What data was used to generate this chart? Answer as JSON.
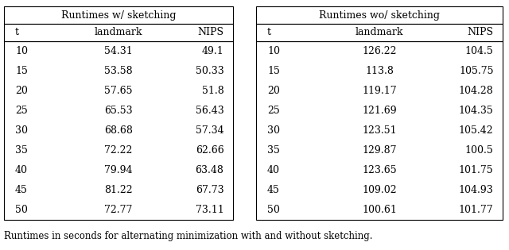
{
  "table1_title": "Runtimes w/ sketching",
  "table2_title": "Runtimes wo/ sketching",
  "t_values": [
    "10",
    "15",
    "20",
    "25",
    "30",
    "35",
    "40",
    "45",
    "50"
  ],
  "table1_landmark": [
    "54.31",
    "53.58",
    "57.65",
    "65.53",
    "68.68",
    "72.22",
    "79.94",
    "81.22",
    "72.77"
  ],
  "table1_nips": [
    "49.1",
    "50.33",
    "51.8",
    "56.43",
    "57.34",
    "62.66",
    "63.48",
    "67.73",
    "73.11"
  ],
  "table2_landmark": [
    "126.22",
    "113.8",
    "119.17",
    "121.69",
    "123.51",
    "129.87",
    "123.65",
    "109.02",
    "100.61"
  ],
  "table2_nips": [
    "104.5",
    "105.75",
    "104.28",
    "104.35",
    "105.42",
    "100.5",
    "101.75",
    "104.93",
    "101.77"
  ],
  "caption": "Runtimes in seconds for alternating minimization with and without sketching.",
  "bg_color": "#ffffff",
  "text_color": "#000000",
  "font_size": 9.0,
  "caption_font_size": 8.5,
  "lw": 0.8
}
